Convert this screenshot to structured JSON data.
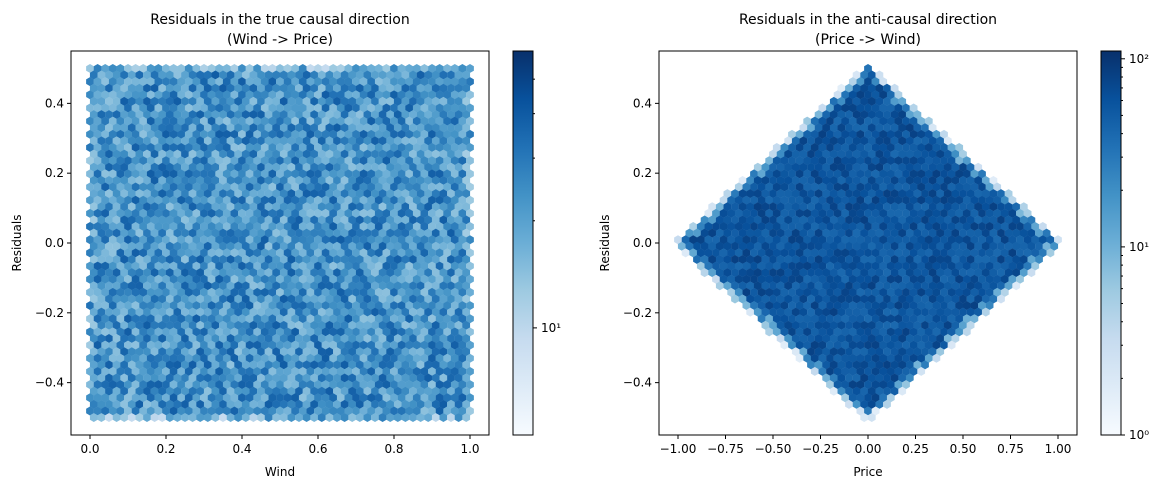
{
  "chart_data": [
    {
      "type": "hexbin",
      "title": "Residuals in the true causal direction\n(Wind -> Price)",
      "xlabel": "Wind",
      "ylabel": "Residuals",
      "xlim": [
        -0.05,
        1.05
      ],
      "ylim": [
        -0.55,
        0.55
      ],
      "xticks": [
        0.0,
        0.2,
        0.4,
        0.6,
        0.8,
        1.0
      ],
      "xtick_labels": [
        "0.0",
        "0.2",
        "0.4",
        "0.6",
        "0.8",
        "1.0"
      ],
      "yticks": [
        -0.4,
        -0.2,
        0.0,
        0.2,
        0.4
      ],
      "ytick_labels": [
        "−0.4",
        "−0.2",
        "0.0",
        "0.2",
        "0.4"
      ],
      "support": "rectangle x in [0,1], y in [-0.5,0.5]",
      "color_scale": "log",
      "colormap": "Blues",
      "colorbar": {
        "range": [
          5,
          60
        ],
        "major_ticks": [
          10
        ],
        "major_labels": [
          "10¹"
        ],
        "minor_ticks": [
          20,
          30,
          40,
          50
        ]
      },
      "grid": false
    },
    {
      "type": "hexbin",
      "title": "Residuals in the anti-causal direction\n(Price -> Wind)",
      "xlabel": "Price",
      "ylabel": "Residuals",
      "xlim": [
        -1.1,
        1.1
      ],
      "ylim": [
        -0.55,
        0.55
      ],
      "xticks": [
        -1.0,
        -0.75,
        -0.5,
        -0.25,
        0.0,
        0.25,
        0.5,
        0.75,
        1.0
      ],
      "xtick_labels": [
        "−1.00",
        "−0.75",
        "−0.50",
        "−0.25",
        "0.00",
        "0.25",
        "0.50",
        "0.75",
        "1.00"
      ],
      "yticks": [
        -0.4,
        -0.2,
        0.0,
        0.2,
        0.4
      ],
      "ytick_labels": [
        "−0.4",
        "−0.2",
        "0.0",
        "0.2",
        "0.4"
      ],
      "support": "diamond |x| + 2|y| <= 1",
      "color_scale": "log",
      "colormap": "Blues",
      "colorbar": {
        "range": [
          1,
          110
        ],
        "major_ticks": [
          1,
          10,
          100
        ],
        "major_labels": [
          "10⁰",
          "10¹",
          "10²"
        ]
      },
      "grid": false
    }
  ]
}
